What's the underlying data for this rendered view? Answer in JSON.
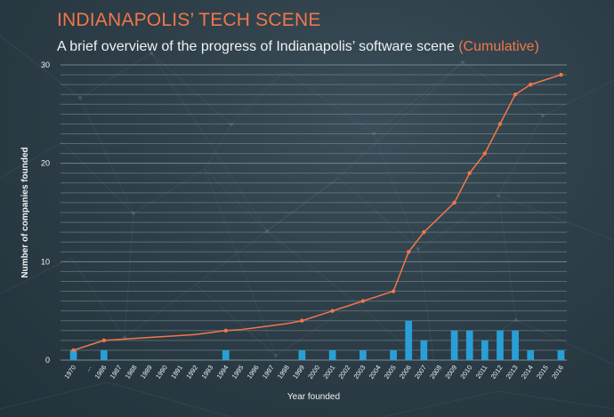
{
  "header": {
    "title": "INDIANAPOLIS’ TECH SCENE",
    "subtitle": "A brief overview of the progress of Indianapolis’ software scene",
    "subtitle_accent": "(Cumulative)"
  },
  "colors": {
    "background": "#2e3f49",
    "accent": "#f2764a",
    "line": "#f2764a",
    "bars": "#2a9fd6",
    "text": "#eef2f4",
    "grid": "#8fa2ab"
  },
  "chart_data": {
    "type": "bar",
    "xlabel": "Year founded",
    "ylabel": "Number of companies founded",
    "ylim": [
      0,
      30
    ],
    "y_ticks": [
      0,
      10,
      20,
      30
    ],
    "grid": true,
    "categories": [
      "1970",
      "...",
      "1986",
      "1987",
      "1988",
      "1989",
      "1990",
      "1991",
      "1992",
      "1993",
      "1994",
      "1995",
      "1996",
      "1997",
      "1998",
      "1999",
      "2000",
      "2001",
      "2002",
      "2003",
      "2004",
      "2005",
      "2006",
      "2007",
      "2008",
      "2009",
      "2010",
      "2011",
      "2012",
      "2013",
      "2014",
      "2015",
      "2016"
    ],
    "series": [
      {
        "kind": "bar",
        "values": [
          1,
          0,
          1,
          0,
          0,
          0,
          0,
          0,
          0,
          0,
          1,
          0,
          0,
          0,
          0,
          1,
          0,
          1,
          0,
          1,
          0,
          1,
          4,
          2,
          0,
          3,
          3,
          2,
          3,
          3,
          1,
          0,
          1
        ]
      },
      {
        "kind": "line",
        "values": [
          1,
          1.5,
          2,
          2.1,
          2.2,
          2.3,
          2.4,
          2.5,
          2.6,
          2.8,
          3,
          3.1,
          3.3,
          3.5,
          3.7,
          4,
          4.5,
          5,
          5.5,
          6,
          6.5,
          7,
          11,
          13,
          14.5,
          16,
          19,
          21,
          24,
          27,
          28,
          28.5,
          29
        ]
      }
    ]
  }
}
